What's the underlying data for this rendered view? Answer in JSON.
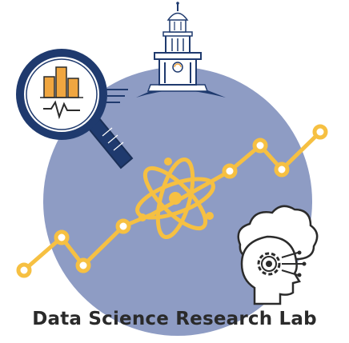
{
  "logo": {
    "title": "Data Science Research Lab",
    "colors": {
      "circle": "#8e9cc4",
      "accent": "#f6c042",
      "navy": "#1f3a6e",
      "magnifier_bars": "#f0a640",
      "outline": "#2b2b2b"
    },
    "icons": [
      "clock-tower-icon",
      "magnifier-chart-icon",
      "atom-icon",
      "trend-line-icon",
      "head-cloud-gear-icon"
    ]
  }
}
